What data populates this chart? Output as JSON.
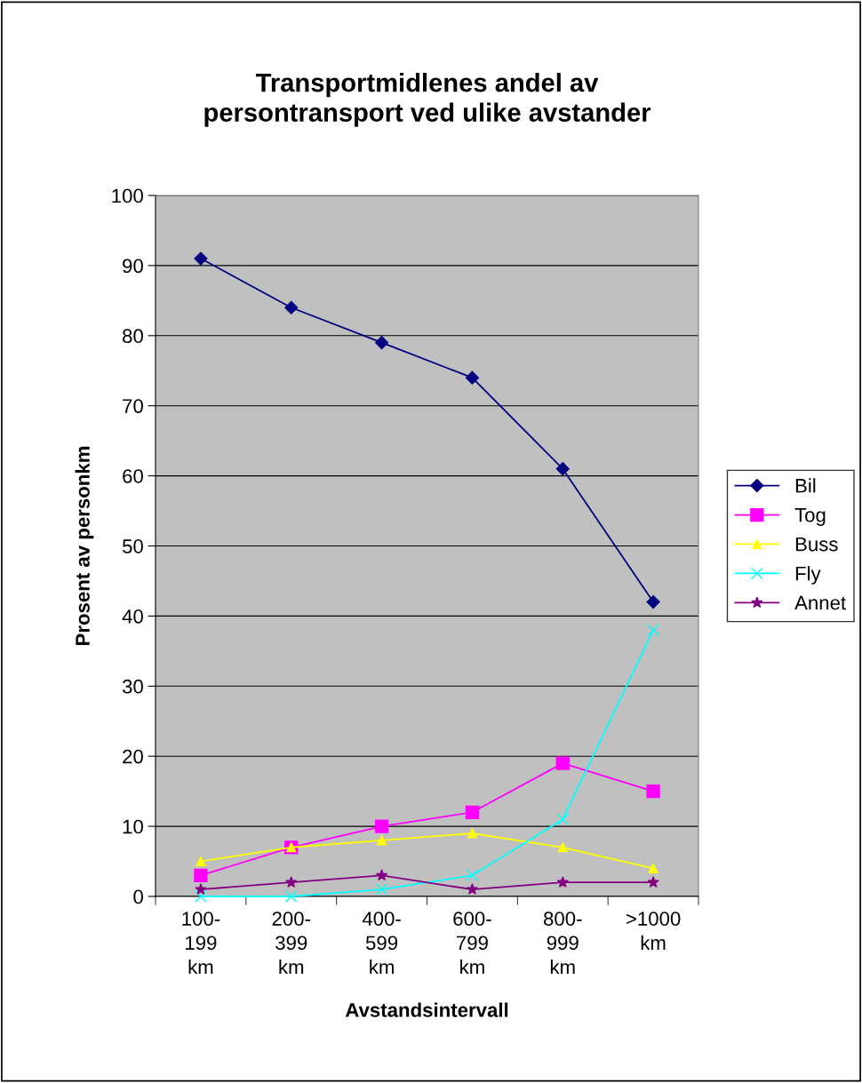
{
  "chart_data": {
    "type": "line",
    "title": "Transportmidlenes andel av\npersontransport ved ulike avstander",
    "xlabel": "Avstandsintervall",
    "ylabel": "Prosent av personkm",
    "categories": [
      "100-\n199\nkm",
      "200-\n399\nkm",
      "400-\n599\nkm",
      "600-\n799\nkm",
      "800-\n999\nkm",
      ">1000\nkm"
    ],
    "series": [
      {
        "name": "Bil",
        "color": "#000080",
        "marker": "diamond",
        "values": [
          91,
          84,
          79,
          74,
          61,
          42
        ]
      },
      {
        "name": "Tog",
        "color": "#ff00ff",
        "marker": "square",
        "values": [
          3,
          7,
          10,
          12,
          19,
          15
        ]
      },
      {
        "name": "Buss",
        "color": "#ffff00",
        "marker": "triangle",
        "values": [
          5,
          7,
          8,
          9,
          7,
          4
        ]
      },
      {
        "name": "Fly",
        "color": "#00ffff",
        "marker": "cross",
        "values": [
          0,
          0,
          1,
          3,
          11,
          38
        ]
      },
      {
        "name": "Annet",
        "color": "#800080",
        "marker": "star",
        "values": [
          1,
          2,
          3,
          1,
          2,
          2
        ]
      }
    ],
    "ylim": [
      0,
      100
    ],
    "yticks": [
      0,
      10,
      20,
      30,
      40,
      50,
      60,
      70,
      80,
      90,
      100
    ],
    "grid": "y",
    "legend": "right",
    "line_style": "solid"
  }
}
